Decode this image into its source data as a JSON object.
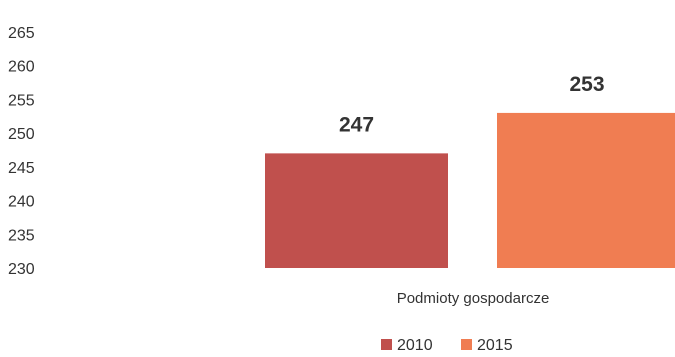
{
  "chart_data": {
    "type": "bar",
    "categories": [
      "Podmioty gospodarcze"
    ],
    "series": [
      {
        "name": "2010",
        "values": [
          247
        ],
        "color": "#c0504d"
      },
      {
        "name": "2015",
        "values": [
          253
        ],
        "color": "#f07d52"
      }
    ],
    "data_labels": [
      "247",
      "253"
    ],
    "yticks": [
      "265",
      "260",
      "255",
      "250",
      "245",
      "240",
      "235",
      "230"
    ],
    "ylim": [
      230,
      265
    ],
    "grid": false,
    "legend": "bottom-center"
  }
}
